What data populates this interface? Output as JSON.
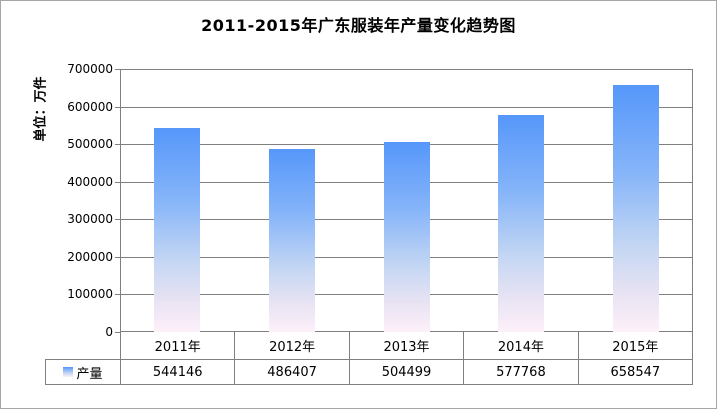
{
  "window": {
    "background": "#ffffff",
    "border_color": "#a6a6a6"
  },
  "chart_data": {
    "type": "bar",
    "title": "2011-2015年广东服装年产量变化趋势图",
    "ylabel": "单位：万件",
    "xlabel": "",
    "categories": [
      "2011年",
      "2012年",
      "2013年",
      "2014年",
      "2015年"
    ],
    "series": [
      {
        "name": "产量",
        "values": [
          544146,
          486407,
          504499,
          577768,
          658547
        ]
      }
    ],
    "ylim": [
      0,
      700000
    ],
    "yticks": [
      0,
      100000,
      200000,
      300000,
      400000,
      500000,
      600000,
      700000
    ],
    "grid": true,
    "legend_position": "bottom-table-left",
    "data_table_shown": true,
    "colors": {
      "bar_gradient": [
        "#5697fa",
        "#85b4f9",
        "#c3d6f3",
        "#e9e3f3",
        "#fdf0f9"
      ],
      "gridline": "#808080",
      "axis": "#808080",
      "table_border": "#808080",
      "text": "#000000"
    }
  }
}
